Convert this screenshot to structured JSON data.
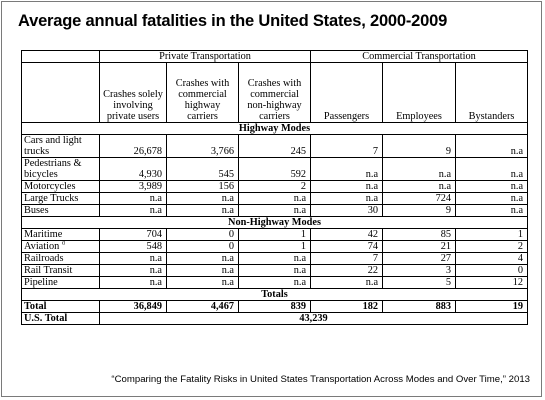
{
  "title": "Average annual fatalities in the United States, 2000-2009",
  "groups": {
    "private": "Private Transportation",
    "commercial": "Commercial Transportation"
  },
  "columns": [
    "Crashes solely involving private users",
    "Crashes with commercial highway carriers",
    "Crashes with commercial non-highway carriers",
    "Passengers",
    "Employees",
    "Bystanders"
  ],
  "sections": {
    "highway": "Highway Modes",
    "nonhighway": "Non-Highway Modes",
    "totals": "Totals"
  },
  "highway_rows": [
    {
      "label": "Cars and light trucks",
      "values": [
        "26,678",
        "3,766",
        "245",
        "7",
        "9",
        "n.a"
      ]
    },
    {
      "label": "Pedestrians & bicycles",
      "values": [
        "4,930",
        "545",
        "592",
        "n.a",
        "n.a",
        "n.a"
      ]
    },
    {
      "label": "Motorcycles",
      "values": [
        "3,989",
        "156",
        "2",
        "n.a",
        "n.a",
        "n.a"
      ]
    },
    {
      "label": "Large Trucks",
      "values": [
        "n.a",
        "n.a",
        "n.a",
        "n.a",
        "724",
        "n.a"
      ]
    },
    {
      "label": "Buses",
      "values": [
        "n.a",
        "n.a",
        "n.a",
        "30",
        "9",
        "n.a"
      ]
    }
  ],
  "nonhighway_rows": [
    {
      "label": "Maritime",
      "values": [
        "704",
        "0",
        "1",
        "42",
        "85",
        "1"
      ]
    },
    {
      "label": "Aviation",
      "sup": "d",
      "values": [
        "548",
        "0",
        "1",
        "74",
        "21",
        "2"
      ]
    },
    {
      "label": "Railroads",
      "values": [
        "n.a",
        "n.a",
        "n.a",
        "7",
        "27",
        "4"
      ]
    },
    {
      "label": "Rail Transit",
      "values": [
        "n.a",
        "n.a",
        "n.a",
        "22",
        "3",
        "0"
      ]
    },
    {
      "label": "Pipeline",
      "values": [
        "n.a",
        "n.a",
        "n.a",
        "n.a",
        "5",
        "12"
      ]
    }
  ],
  "total_row": {
    "label": "Total",
    "values": [
      "36,849",
      "4,467",
      "839",
      "182",
      "883",
      "19"
    ]
  },
  "us_total": {
    "label": "U.S. Total",
    "value": "43,239"
  },
  "source": "“Comparing the Fatality Risks in United States Transportation Across Modes and Over Time,” 2013"
}
